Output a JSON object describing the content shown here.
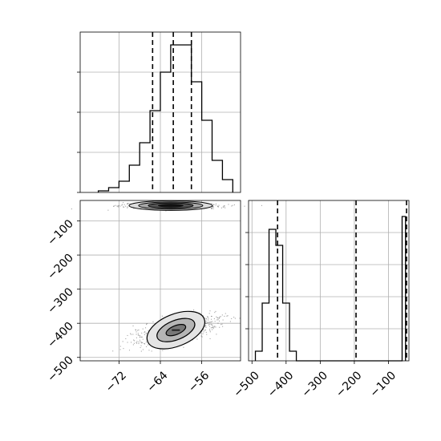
{
  "chart_data": [
    {
      "type": "histogram",
      "panel": "marginal-param-1",
      "x_ticks": [
        "−72",
        "−64",
        "−56"
      ],
      "x_tick_values": [
        -72,
        -64,
        -56
      ],
      "xlim": [
        -79.5,
        -48.5
      ],
      "bin_edges": [
        -76,
        -74,
        -72,
        -70,
        -68,
        -66,
        -64,
        -62,
        -60,
        -58,
        -56,
        -54,
        -52,
        -50
      ],
      "counts": [
        1,
        3,
        7,
        17,
        31,
        51,
        75,
        92,
        92,
        69,
        45,
        20,
        8
      ],
      "ylim": [
        0,
        100
      ],
      "quantile_lines": [
        -65.5,
        -61.5,
        -58.0
      ],
      "grid": true,
      "y_tick_labels_shown": false
    },
    {
      "type": "histogram",
      "panel": "marginal-param-2",
      "x_ticks": [
        "−500",
        "−400",
        "−300",
        "−200",
        "−100"
      ],
      "x_tick_values": [
        -500,
        -400,
        -300,
        -200,
        -100
      ],
      "xlim": [
        -510,
        -40
      ],
      "bin_edges": [
        -490,
        -470,
        -450,
        -430,
        -410,
        -390,
        -370,
        -60,
        -50
      ],
      "counts": [
        3,
        18,
        41,
        36,
        18,
        3,
        0,
        45
      ],
      "ylim": [
        0,
        50
      ],
      "quantile_lines": [
        -425,
        -195,
        -47
      ],
      "grid": true,
      "y_tick_labels_shown": false
    },
    {
      "type": "2d-density",
      "panel": "joint-param-1-param-2",
      "x_ticks": [
        "−72",
        "−64",
        "−56"
      ],
      "x_tick_values": [
        -72,
        -64,
        -56
      ],
      "y_ticks": [
        "−100",
        "−200",
        "−300",
        "−400",
        "−500"
      ],
      "y_tick_values": [
        -100,
        -200,
        -300,
        -400,
        -500
      ],
      "xlim": [
        -79.5,
        -48.5
      ],
      "ylim": [
        -510,
        -40
      ],
      "modes": [
        {
          "x": -62,
          "y": -55,
          "weight": 0.55
        },
        {
          "x": -61,
          "y": -420,
          "weight": 0.45
        }
      ],
      "grid": true
    }
  ]
}
